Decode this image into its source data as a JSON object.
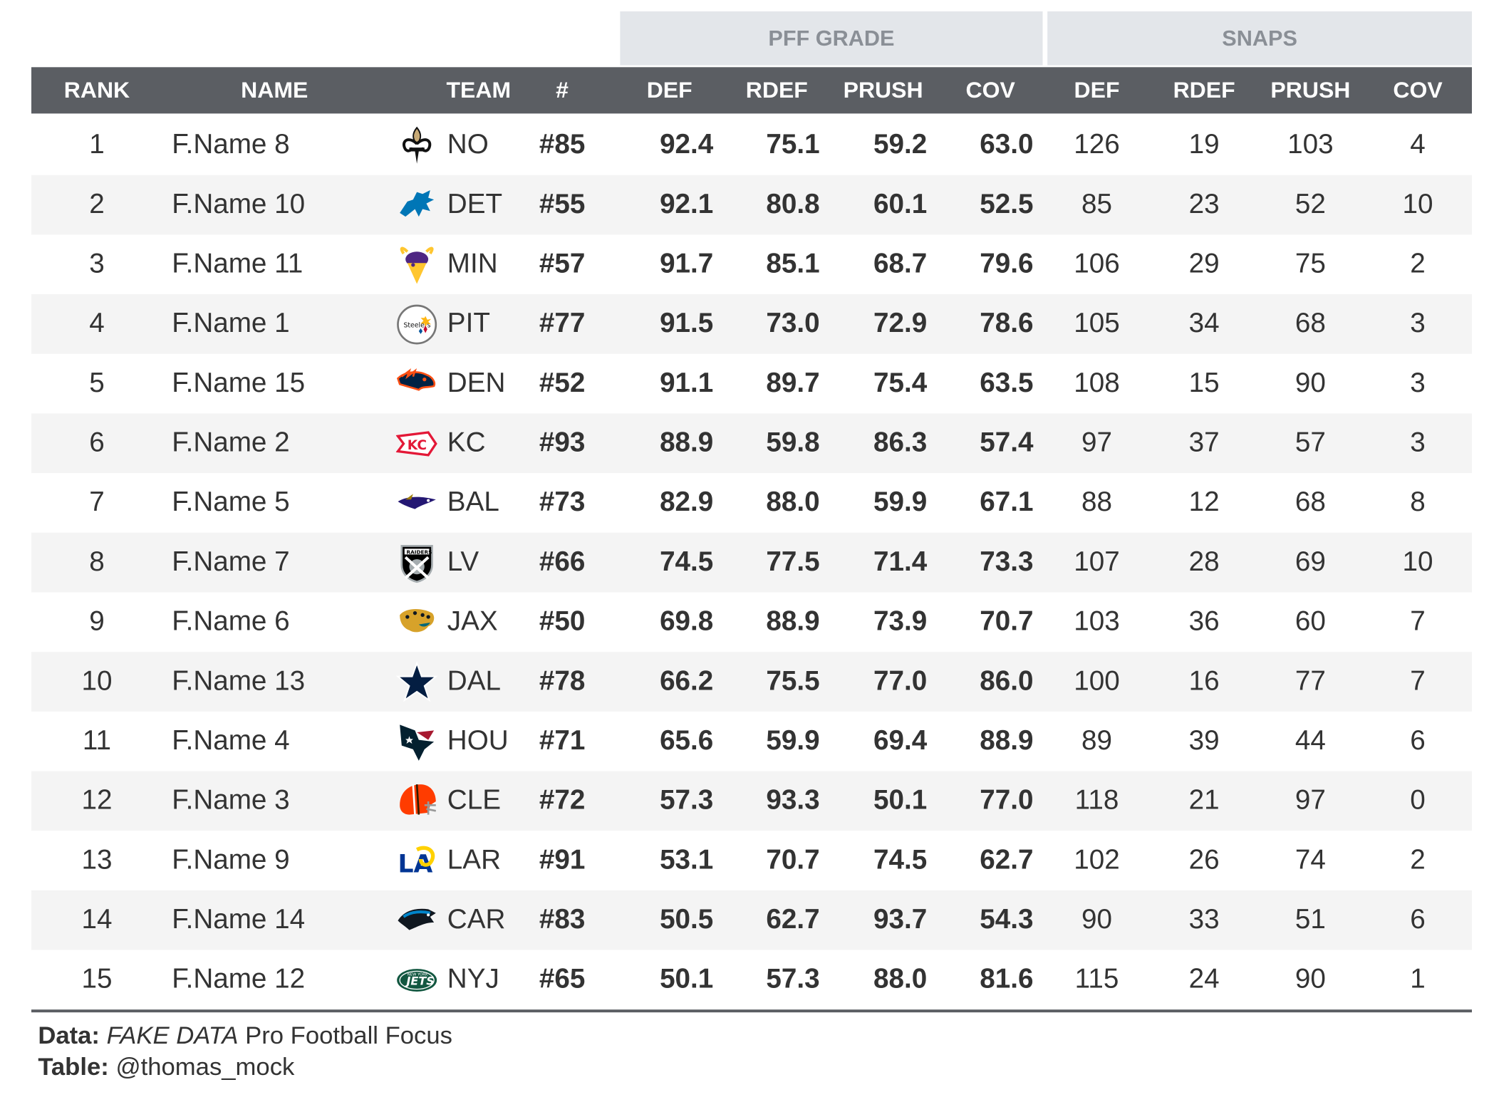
{
  "spanners": {
    "grade": "PFF GRADE",
    "snaps": "SNAPS"
  },
  "columns": [
    "RANK",
    "NAME",
    "TEAM",
    "#",
    "DEF",
    "RDEF",
    "PRUSH",
    "COV",
    "DEF",
    "RDEF",
    "PRUSH",
    "COV"
  ],
  "rows": [
    {
      "rank": "1",
      "name": "F.Name 8",
      "logo": "saints-fleur-de-lis-icon",
      "team": "NO",
      "num": "#85",
      "grade": [
        "92.4",
        "75.1",
        "59.2",
        "63.0"
      ],
      "snaps": [
        "126",
        "19",
        "103",
        "4"
      ]
    },
    {
      "rank": "2",
      "name": "F.Name 10",
      "logo": "lions-icon",
      "team": "DET",
      "num": "#55",
      "grade": [
        "92.1",
        "80.8",
        "60.1",
        "52.5"
      ],
      "snaps": [
        "85",
        "23",
        "52",
        "10"
      ]
    },
    {
      "rank": "3",
      "name": "F.Name 11",
      "logo": "vikings-icon",
      "team": "MIN",
      "num": "#57",
      "grade": [
        "91.7",
        "85.1",
        "68.7",
        "79.6"
      ],
      "snaps": [
        "106",
        "29",
        "75",
        "2"
      ]
    },
    {
      "rank": "4",
      "name": "F.Name 1",
      "logo": "steelers-icon",
      "team": "PIT",
      "num": "#77",
      "grade": [
        "91.5",
        "73.0",
        "72.9",
        "78.6"
      ],
      "snaps": [
        "105",
        "34",
        "68",
        "3"
      ]
    },
    {
      "rank": "5",
      "name": "F.Name 15",
      "logo": "broncos-icon",
      "team": "DEN",
      "num": "#52",
      "grade": [
        "91.1",
        "89.7",
        "75.4",
        "63.5"
      ],
      "snaps": [
        "108",
        "15",
        "90",
        "3"
      ]
    },
    {
      "rank": "6",
      "name": "F.Name 2",
      "logo": "chiefs-icon",
      "team": "KC",
      "num": "#93",
      "grade": [
        "88.9",
        "59.8",
        "86.3",
        "57.4"
      ],
      "snaps": [
        "97",
        "37",
        "57",
        "3"
      ]
    },
    {
      "rank": "7",
      "name": "F.Name 5",
      "logo": "ravens-icon",
      "team": "BAL",
      "num": "#73",
      "grade": [
        "82.9",
        "88.0",
        "59.9",
        "67.1"
      ],
      "snaps": [
        "88",
        "12",
        "68",
        "8"
      ]
    },
    {
      "rank": "8",
      "name": "F.Name 7",
      "logo": "raiders-icon",
      "team": "LV",
      "num": "#66",
      "grade": [
        "74.5",
        "77.5",
        "71.4",
        "73.3"
      ],
      "snaps": [
        "107",
        "28",
        "69",
        "10"
      ]
    },
    {
      "rank": "9",
      "name": "F.Name 6",
      "logo": "jaguars-icon",
      "team": "JAX",
      "num": "#50",
      "grade": [
        "69.8",
        "88.9",
        "73.9",
        "70.7"
      ],
      "snaps": [
        "103",
        "36",
        "60",
        "7"
      ]
    },
    {
      "rank": "10",
      "name": "F.Name 13",
      "logo": "cowboys-star-icon",
      "team": "DAL",
      "num": "#78",
      "grade": [
        "66.2",
        "75.5",
        "77.0",
        "86.0"
      ],
      "snaps": [
        "100",
        "16",
        "77",
        "7"
      ]
    },
    {
      "rank": "11",
      "name": "F.Name 4",
      "logo": "texans-icon",
      "team": "HOU",
      "num": "#71",
      "grade": [
        "65.6",
        "59.9",
        "69.4",
        "88.9"
      ],
      "snaps": [
        "89",
        "39",
        "44",
        "6"
      ]
    },
    {
      "rank": "12",
      "name": "F.Name 3",
      "logo": "browns-helmet-icon",
      "team": "CLE",
      "num": "#72",
      "grade": [
        "57.3",
        "93.3",
        "50.1",
        "77.0"
      ],
      "snaps": [
        "118",
        "21",
        "97",
        "0"
      ]
    },
    {
      "rank": "13",
      "name": "F.Name 9",
      "logo": "rams-icon",
      "team": "LAR",
      "num": "#91",
      "grade": [
        "53.1",
        "70.7",
        "74.5",
        "62.7"
      ],
      "snaps": [
        "102",
        "26",
        "74",
        "2"
      ]
    },
    {
      "rank": "14",
      "name": "F.Name 14",
      "logo": "panthers-icon",
      "team": "CAR",
      "num": "#83",
      "grade": [
        "50.5",
        "62.7",
        "93.7",
        "54.3"
      ],
      "snaps": [
        "90",
        "33",
        "51",
        "6"
      ]
    },
    {
      "rank": "15",
      "name": "F.Name 12",
      "logo": "jets-icon",
      "team": "NYJ",
      "num": "#65",
      "grade": [
        "50.1",
        "57.3",
        "88.0",
        "81.6"
      ],
      "snaps": [
        "115",
        "24",
        "90",
        "1"
      ]
    }
  ],
  "footer": {
    "data_label": "Data:",
    "data_source_italic": "FAKE DATA",
    "data_source": "Pro Football Focus",
    "table_label": "Table:",
    "table_author": "@thomas_mock"
  }
}
